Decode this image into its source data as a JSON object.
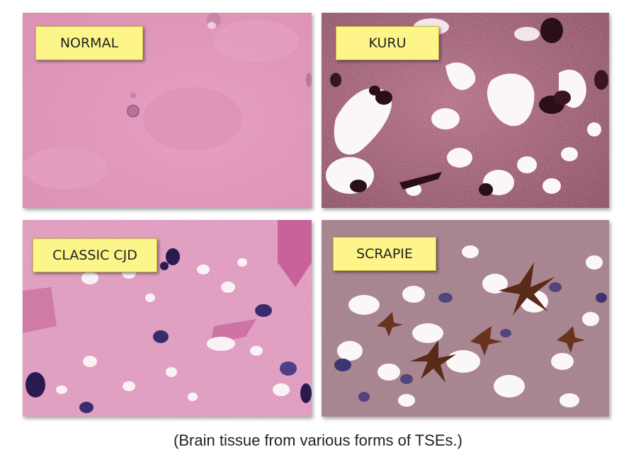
{
  "panels": [
    {
      "id": "normal",
      "label": "NORMAL",
      "depicts": "normal brain tissue micrograph"
    },
    {
      "id": "kuru",
      "label": "KURU",
      "depicts": "kuru brain tissue micrograph"
    },
    {
      "id": "cjd",
      "label": "CLASSIC CJD",
      "depicts": "classic CJD brain tissue micrograph"
    },
    {
      "id": "scrapie",
      "label": "SCRAPIE",
      "depicts": "scrapie brain tissue micrograph"
    }
  ],
  "caption": "(Brain tissue from various forms of TSEs.)",
  "colors": {
    "label_background": "#fdf58a",
    "normal_tissue": "#e59bbd",
    "kuru_tissue": "#8c3a55",
    "cjd_tissue": "#dc8fb7",
    "scrapie_tissue": "#9a7c92"
  }
}
